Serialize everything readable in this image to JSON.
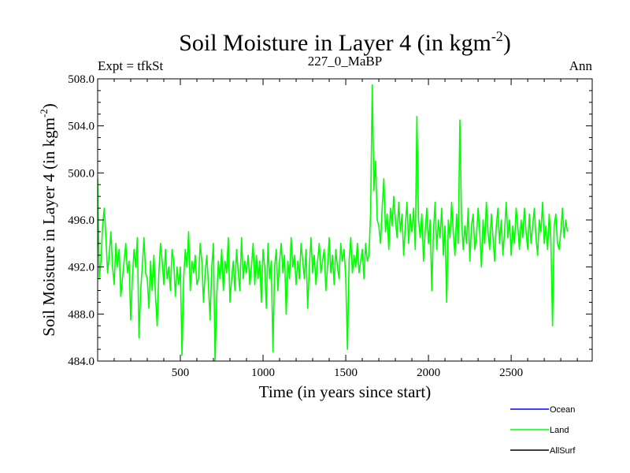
{
  "chart_data": {
    "type": "line",
    "title_main": "Soil Moisture in Layer 4 (in kgm",
    "title_sup": "-2",
    "title_close": ")",
    "subtitle_left": "Expt = tfkSt",
    "subtitle_center": "227_0_MaBP",
    "subtitle_right": "Ann",
    "xlabel": "Time (in years since start)",
    "ylabel_main": "Soil Moisture in Layer 4 (in kgm",
    "ylabel_sup": "-2",
    "ylabel_close": ")",
    "xlim": [
      0,
      2990
    ],
    "ylim": [
      484.0,
      508.0
    ],
    "x_ticks": [
      500,
      1000,
      1500,
      2000,
      2500
    ],
    "x_tick_labels": [
      "500",
      "1000",
      "1500",
      "2000",
      "2500"
    ],
    "y_ticks": [
      484,
      488,
      492,
      496,
      500,
      504,
      508
    ],
    "y_tick_labels": [
      "484.0",
      "488.0",
      "492.0",
      "496.0",
      "500.0",
      "504.0",
      "508.0"
    ],
    "legend": [
      {
        "name": "Ocean",
        "color": "#0000ff"
      },
      {
        "name": "Land",
        "color": "#00ff00"
      },
      {
        "name": "AllSurf",
        "color": "#000000"
      }
    ],
    "series": [
      {
        "name": "Land",
        "color": "#00ff00",
        "x_start": 0,
        "x_step": 10,
        "values": [
          499.5,
          491.0,
          492.5,
          495.5,
          497.0,
          494.5,
          491.5,
          493.0,
          495.0,
          492.0,
          490.5,
          494.0,
          492.0,
          493.5,
          489.5,
          491.0,
          492.5,
          494.0,
          491.5,
          492.5,
          487.5,
          491.0,
          493.5,
          492.0,
          494.5,
          486.0,
          490.0,
          492.0,
          494.5,
          491.5,
          491.0,
          488.5,
          492.5,
          490.0,
          493.0,
          489.5,
          487.0,
          491.5,
          494.0,
          492.5,
          490.5,
          493.5,
          491.0,
          492.0,
          490.0,
          493.5,
          492.5,
          489.5,
          492.0,
          490.5,
          492.0,
          484.5,
          491.0,
          493.5,
          492.0,
          495.0,
          490.0,
          492.5,
          491.5,
          493.0,
          490.5,
          491.0,
          494.0,
          492.5,
          489.0,
          491.5,
          493.0,
          490.5,
          487.5,
          492.0,
          494.0,
          484.0,
          489.5,
          492.5,
          491.0,
          493.5,
          490.0,
          492.5,
          491.5,
          494.5,
          489.0,
          491.0,
          492.5,
          490.0,
          493.5,
          491.5,
          490.0,
          494.5,
          491.0,
          492.5,
          491.5,
          493.0,
          490.5,
          492.0,
          494.0,
          490.5,
          493.0,
          491.0,
          492.5,
          489.0,
          493.5,
          492.0,
          488.5,
          494.0,
          491.0,
          492.5,
          484.8,
          492.0,
          493.5,
          490.0,
          492.5,
          494.0,
          491.5,
          493.0,
          488.0,
          492.5,
          491.0,
          494.5,
          492.0,
          493.0,
          490.5,
          492.5,
          491.0,
          494.0,
          492.5,
          491.0,
          493.5,
          488.5,
          492.0,
          494.5,
          491.5,
          493.0,
          490.5,
          492.5,
          494.0,
          491.5,
          492.5,
          493.5,
          490.0,
          492.0,
          494.5,
          491.5,
          493.0,
          490.5,
          493.5,
          492.0,
          491.0,
          494.0,
          492.5,
          493.5,
          491.0,
          485.0,
          492.5,
          494.5,
          491.5,
          493.0,
          492.0,
          494.0,
          491.5,
          492.5,
          493.5,
          491.0,
          494.0,
          492.5,
          493.0,
          496.5,
          507.5,
          498.5,
          501.0,
          496.0,
          495.5,
          494.0,
          497.0,
          499.5,
          495.0,
          496.5,
          493.5,
          497.0,
          495.5,
          498.0,
          496.0,
          494.5,
          497.5,
          495.0,
          496.5,
          493.0,
          495.5,
          497.5,
          494.0,
          496.5,
          495.0,
          497.0,
          493.5,
          504.8,
          496.0,
          494.5,
          496.5,
          492.5,
          495.0,
          497.0,
          494.0,
          496.0,
          490.0,
          495.0,
          497.5,
          493.5,
          496.0,
          494.5,
          497.0,
          493.0,
          495.5,
          489.0,
          496.0,
          494.5,
          497.5,
          495.0,
          493.0,
          496.5,
          494.0,
          504.5,
          496.0,
          493.5,
          495.5,
          494.0,
          497.0,
          492.5,
          495.5,
          496.5,
          493.5,
          494.5,
          497.0,
          495.0,
          492.0,
          496.0,
          494.0,
          497.5,
          495.0,
          493.5,
          496.5,
          494.5,
          492.5,
          495.5,
          497.0,
          494.0,
          496.0,
          493.0,
          495.0,
          497.5,
          494.5,
          496.0,
          493.0,
          495.5,
          494.0,
          497.0,
          495.5,
          493.5,
          496.0,
          494.5,
          497.0,
          495.0,
          493.5,
          496.5,
          494.0,
          495.5,
          497.0,
          494.5,
          493.0,
          496.0,
          495.0,
          497.5,
          494.0,
          495.5,
          493.5,
          496.5,
          494.5,
          487.0,
          495.5,
          496.5,
          494.0,
          493.5,
          495.0,
          497.0,
          494.5,
          496.0,
          495.0
        ]
      }
    ]
  }
}
